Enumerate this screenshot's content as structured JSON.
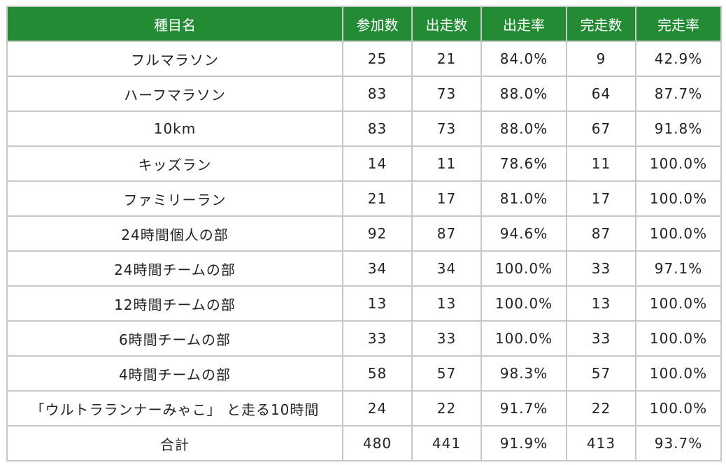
{
  "table": {
    "headers": [
      "種目名",
      "参加数",
      "出走数",
      "出走率",
      "完走数",
      "完走率"
    ],
    "rows": [
      [
        "フルマラソン",
        "25",
        "21",
        "84.0%",
        "9",
        "42.9%"
      ],
      [
        "ハーフマラソン",
        "83",
        "73",
        "88.0%",
        "64",
        "87.7%"
      ],
      [
        "10km",
        "83",
        "73",
        "88.0%",
        "67",
        "91.8%"
      ],
      [
        "キッズラン",
        "14",
        "11",
        "78.6%",
        "11",
        "100.0%"
      ],
      [
        "ファミリーラン",
        "21",
        "17",
        "81.0%",
        "17",
        "100.0%"
      ],
      [
        "24時間個人の部",
        "92",
        "87",
        "94.6%",
        "87",
        "100.0%"
      ],
      [
        "24時間チームの部",
        "34",
        "34",
        "100.0%",
        "33",
        "97.1%"
      ],
      [
        "12時間チームの部",
        "13",
        "13",
        "100.0%",
        "13",
        "100.0%"
      ],
      [
        "6時間チームの部",
        "33",
        "33",
        "100.0%",
        "33",
        "100.0%"
      ],
      [
        "4時間チームの部",
        "58",
        "57",
        "98.3%",
        "57",
        "100.0%"
      ],
      [
        "「ウルトラランナーみゃこ」 と走る10時間",
        "24",
        "22",
        "91.7%",
        "22",
        "100.0%"
      ],
      [
        "合計",
        "480",
        "441",
        "91.9%",
        "413",
        "93.7%"
      ]
    ]
  },
  "colors": {
    "header_bg": "#228b34",
    "header_text": "#ffffff",
    "border": "#c8c8c8"
  }
}
